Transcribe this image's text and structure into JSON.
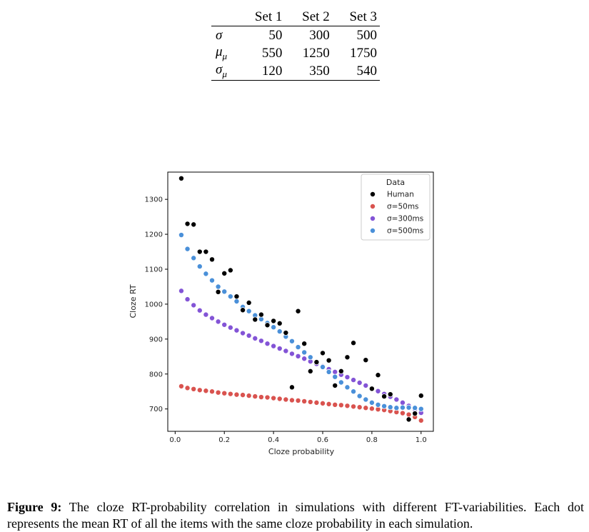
{
  "table": {
    "columns": [
      "",
      "Set 1",
      "Set 2",
      "Set 3"
    ],
    "rows": [
      {
        "label": "σ",
        "values": [
          "50",
          "300",
          "500"
        ]
      },
      {
        "label": "μ_μ",
        "values": [
          "550",
          "1250",
          "1750"
        ]
      },
      {
        "label": "σ_μ",
        "values": [
          "120",
          "350",
          "540"
        ]
      }
    ]
  },
  "figure": {
    "caption_label": "Figure 9:",
    "caption_text": "The cloze RT-probability correlation in simulations with different FT-variabilities. Each dot represents the mean RT of all the items with the same cloze probability in each simulation."
  },
  "chart_data": {
    "type": "scatter",
    "title": "",
    "xlabel": "Cloze probability",
    "ylabel": "Cloze RT",
    "xlim": [
      -0.03,
      1.05
    ],
    "ylim": [
      636,
      1378
    ],
    "xticks": [
      0.0,
      0.2,
      0.4,
      0.6,
      0.8,
      1.0
    ],
    "xtick_labels": [
      "0.0",
      "0.2",
      "0.4",
      "0.6",
      "0.8",
      "1.0"
    ],
    "yticks": [
      700,
      800,
      900,
      1000,
      1100,
      1200,
      1300
    ],
    "ytick_labels": [
      "700",
      "800",
      "900",
      "1000",
      "1100",
      "1200",
      "1300"
    ],
    "grid": false,
    "legend": {
      "title": "Data",
      "placement": "top-right"
    },
    "series": [
      {
        "name": "Human",
        "color": "#000000",
        "x": [
          0.025,
          0.05,
          0.075,
          0.1,
          0.125,
          0.15,
          0.175,
          0.2,
          0.225,
          0.25,
          0.275,
          0.3,
          0.325,
          0.35,
          0.375,
          0.4,
          0.425,
          0.45,
          0.475,
          0.5,
          0.525,
          0.55,
          0.575,
          0.6,
          0.625,
          0.65,
          0.675,
          0.7,
          0.725,
          0.775,
          0.8,
          0.825,
          0.85,
          0.875,
          0.95,
          0.975,
          1.0
        ],
        "y": [
          1360,
          1230,
          1228,
          1150,
          1150,
          1128,
          1035,
          1088,
          1097,
          1022,
          983,
          1004,
          956,
          970,
          940,
          952,
          945,
          918,
          762,
          980,
          887,
          808,
          834,
          860,
          839,
          767,
          808,
          848,
          889,
          840,
          758,
          797,
          736,
          742,
          670,
          687,
          738
        ]
      },
      {
        "name": "σ=50ms",
        "color": "#d9534f",
        "x": [
          0.025,
          0.05,
          0.075,
          0.1,
          0.125,
          0.15,
          0.175,
          0.2,
          0.225,
          0.25,
          0.275,
          0.3,
          0.325,
          0.35,
          0.375,
          0.4,
          0.425,
          0.45,
          0.475,
          0.5,
          0.525,
          0.55,
          0.575,
          0.6,
          0.625,
          0.65,
          0.675,
          0.7,
          0.725,
          0.75,
          0.775,
          0.8,
          0.825,
          0.85,
          0.875,
          0.9,
          0.925,
          0.95,
          0.975,
          1.0
        ],
        "y": [
          765,
          760,
          757,
          754,
          752,
          750,
          747,
          745,
          743,
          741,
          740,
          738,
          736,
          734,
          733,
          731,
          729,
          727,
          725,
          724,
          722,
          720,
          718,
          716,
          714,
          712,
          711,
          709,
          707,
          705,
          703,
          701,
          699,
          697,
          694,
          691,
          688,
          684,
          677,
          667
        ]
      },
      {
        "name": "σ=300ms",
        "color": "#8354d6",
        "x": [
          0.025,
          0.05,
          0.075,
          0.1,
          0.125,
          0.15,
          0.175,
          0.2,
          0.225,
          0.25,
          0.275,
          0.3,
          0.325,
          0.35,
          0.375,
          0.4,
          0.425,
          0.45,
          0.475,
          0.5,
          0.525,
          0.55,
          0.575,
          0.6,
          0.625,
          0.65,
          0.675,
          0.7,
          0.725,
          0.75,
          0.775,
          0.8,
          0.825,
          0.85,
          0.875,
          0.9,
          0.925,
          0.95,
          0.975,
          1.0
        ],
        "y": [
          1038,
          1014,
          997,
          982,
          970,
          960,
          950,
          941,
          933,
          925,
          917,
          910,
          902,
          895,
          887,
          880,
          873,
          866,
          858,
          851,
          844,
          836,
          829,
          822,
          814,
          806,
          798,
          791,
          783,
          775,
          767,
          759,
          751,
          743,
          735,
          727,
          718,
          709,
          699,
          689
        ]
      },
      {
        "name": "σ=500ms",
        "color": "#4a90d9",
        "x": [
          0.025,
          0.05,
          0.075,
          0.1,
          0.125,
          0.15,
          0.175,
          0.2,
          0.225,
          0.25,
          0.275,
          0.3,
          0.325,
          0.35,
          0.375,
          0.4,
          0.425,
          0.45,
          0.475,
          0.5,
          0.525,
          0.55,
          0.575,
          0.6,
          0.625,
          0.65,
          0.675,
          0.7,
          0.725,
          0.75,
          0.775,
          0.8,
          0.825,
          0.85,
          0.875,
          0.9,
          0.925,
          0.95,
          0.975,
          1.0
        ],
        "y": [
          1198,
          1158,
          1132,
          1108,
          1087,
          1068,
          1050,
          1036,
          1022,
          1008,
          992,
          980,
          968,
          957,
          946,
          934,
          922,
          907,
          894,
          877,
          862,
          848,
          834,
          820,
          806,
          792,
          776,
          762,
          750,
          737,
          727,
          718,
          712,
          708,
          705,
          703,
          704,
          704,
          703,
          700
        ]
      }
    ]
  }
}
